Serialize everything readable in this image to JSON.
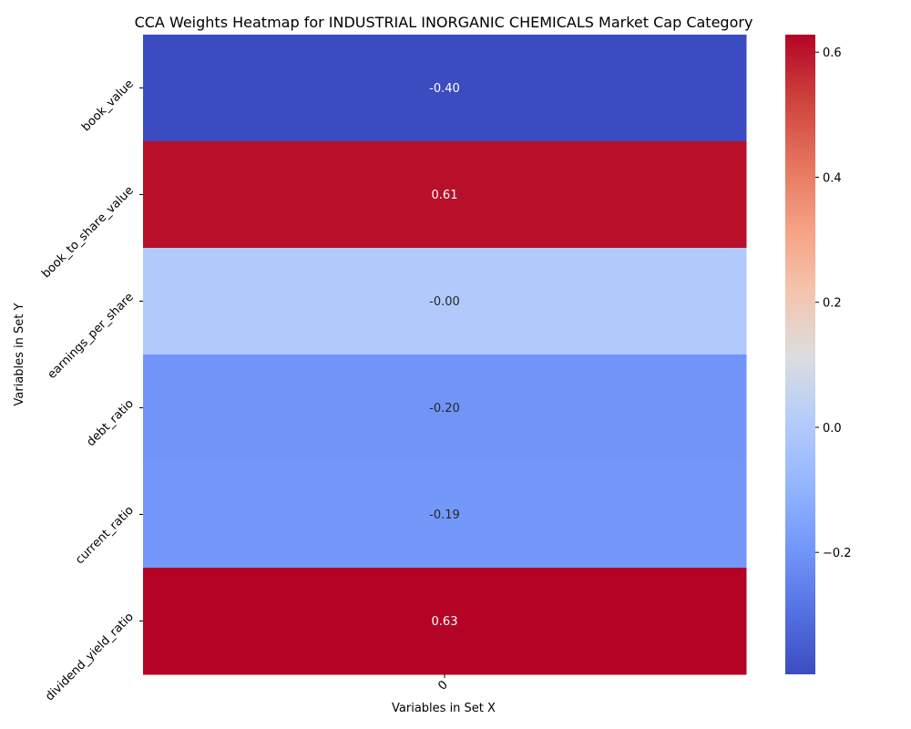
{
  "chart_data": {
    "type": "heatmap",
    "title": "CCA Weights Heatmap for INDUSTRIAL INORGANIC CHEMICALS Market Cap Category",
    "xlabel": "Variables in Set X",
    "ylabel": "Variables in Set Y",
    "x_categories": [
      "0"
    ],
    "y_categories": [
      "book_value",
      "book_to_share_value",
      "earnings_per_share",
      "debt_ratio",
      "current_ratio",
      "dividend_yield_ratio"
    ],
    "values": [
      [
        -0.4
      ],
      [
        0.61
      ],
      [
        -0.0
      ],
      [
        -0.2
      ],
      [
        -0.19
      ],
      [
        0.63
      ]
    ],
    "cell_labels": [
      "-0.40",
      "0.61",
      "-0.00",
      "-0.20",
      "-0.19",
      "0.63"
    ],
    "colormap": "coolwarm",
    "vmin": -0.395,
    "vmax": 0.628,
    "colorbar_ticks": [
      -0.2,
      0.0,
      0.2,
      0.4,
      0.6
    ],
    "colorbar_tick_labels": [
      "−0.2",
      "0.0",
      "0.2",
      "0.4",
      "0.6"
    ],
    "colors": {
      "low": "#3b4cc0",
      "mid": "#dddddd",
      "high": "#b40426"
    }
  }
}
